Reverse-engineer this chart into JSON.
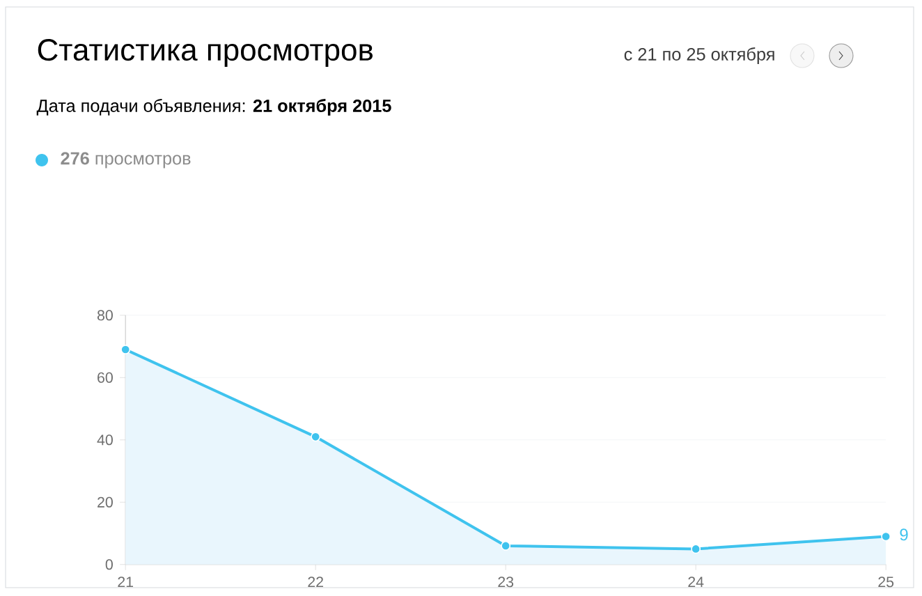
{
  "chart_data": {
    "type": "area",
    "title": "Статистика просмотров",
    "subtitle": "Дата подачи объявления: **21 октября 2015**",
    "annotations": [
      "с 21 по 25 октября"
    ],
    "categories": [
      "21",
      "22",
      "23",
      "24",
      "25"
    ],
    "series": [
      {
        "name": "**276** просмотров",
        "color": "#3fc3ee",
        "values": [
          69,
          41,
          6,
          5,
          9
        ],
        "value_labels": [
          null,
          null,
          null,
          null,
          "9"
        ]
      }
    ],
    "ylim": [
      0,
      80
    ],
    "yticks": [
      0,
      20,
      40,
      60,
      80
    ],
    "grid": "y",
    "legend": "top left",
    "marker": "circle"
  }
}
